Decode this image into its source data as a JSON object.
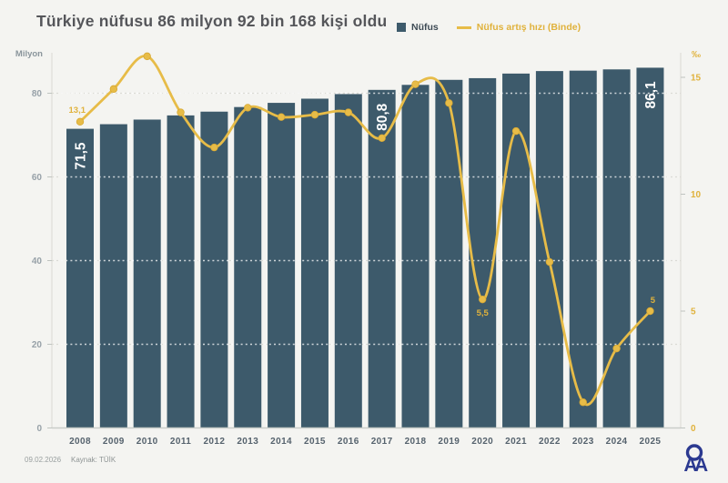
{
  "header": {
    "title": "Türkiye nüfusu 86 milyon 92 bin 168 kişi oldu"
  },
  "legend": {
    "bar_label": "Nüfus",
    "line_label": "Nüfus artış hızı (Binde)"
  },
  "footer": {
    "date": "09.02.2026",
    "source": "Kaynak: TÜİK",
    "logo_text": "AA"
  },
  "colors": {
    "background": "#F4F4F1",
    "bar": "#3D5A6B",
    "line": "#E7BC48",
    "line_label": "#E0B23C",
    "left_axis_text": "#97A1A8",
    "year_text": "#55626D",
    "logo_blue": "#2B3990"
  },
  "chart_data": {
    "type": "bar",
    "subtype": "combo-bar-line",
    "title": "Türkiye nüfusu 86 milyon 92 bin 168 kişi oldu",
    "categories": [
      "2008",
      "2009",
      "2010",
      "2011",
      "2012",
      "2013",
      "2014",
      "2015",
      "2016",
      "2017",
      "2018",
      "2019",
      "2020",
      "2021",
      "2022",
      "2023",
      "2024",
      "2025"
    ],
    "series": [
      {
        "name": "Nüfus",
        "type": "bar",
        "axis": "left",
        "unit": "milyon",
        "values": [
          71.5,
          72.6,
          73.7,
          74.7,
          75.6,
          76.7,
          77.7,
          78.7,
          79.8,
          80.8,
          82.0,
          83.2,
          83.6,
          84.7,
          85.3,
          85.4,
          85.7,
          86.1
        ]
      },
      {
        "name": "Nüfus artış hızı (Binde)",
        "type": "line",
        "axis": "right",
        "unit": "‰",
        "values": [
          13.1,
          14.5,
          15.9,
          13.5,
          12.0,
          13.7,
          13.3,
          13.4,
          13.5,
          12.4,
          14.7,
          13.9,
          5.5,
          12.7,
          7.1,
          1.1,
          3.4,
          5.0
        ]
      }
    ],
    "bar_value_labels": [
      {
        "category": "2008",
        "label": "71,5"
      },
      {
        "category": "2017",
        "label": "80,8"
      },
      {
        "category": "2025",
        "label": "86,1"
      }
    ],
    "line_point_labels": [
      {
        "category": "2008",
        "label": "13,1",
        "placement": "left"
      },
      {
        "category": "2020",
        "label": "5,5",
        "placement": "below"
      },
      {
        "category": "2025",
        "label": "5",
        "placement": "above"
      }
    ],
    "left_axis": {
      "label": "Milyon",
      "ticks": [
        0,
        20,
        40,
        60,
        80
      ],
      "range": [
        0,
        89
      ]
    },
    "right_axis": {
      "label": "‰",
      "ticks": [
        0,
        5,
        10,
        15
      ],
      "range": [
        0,
        16
      ]
    },
    "grid": "horizontal dashed at left-axis ticks",
    "legend_position": "top"
  }
}
